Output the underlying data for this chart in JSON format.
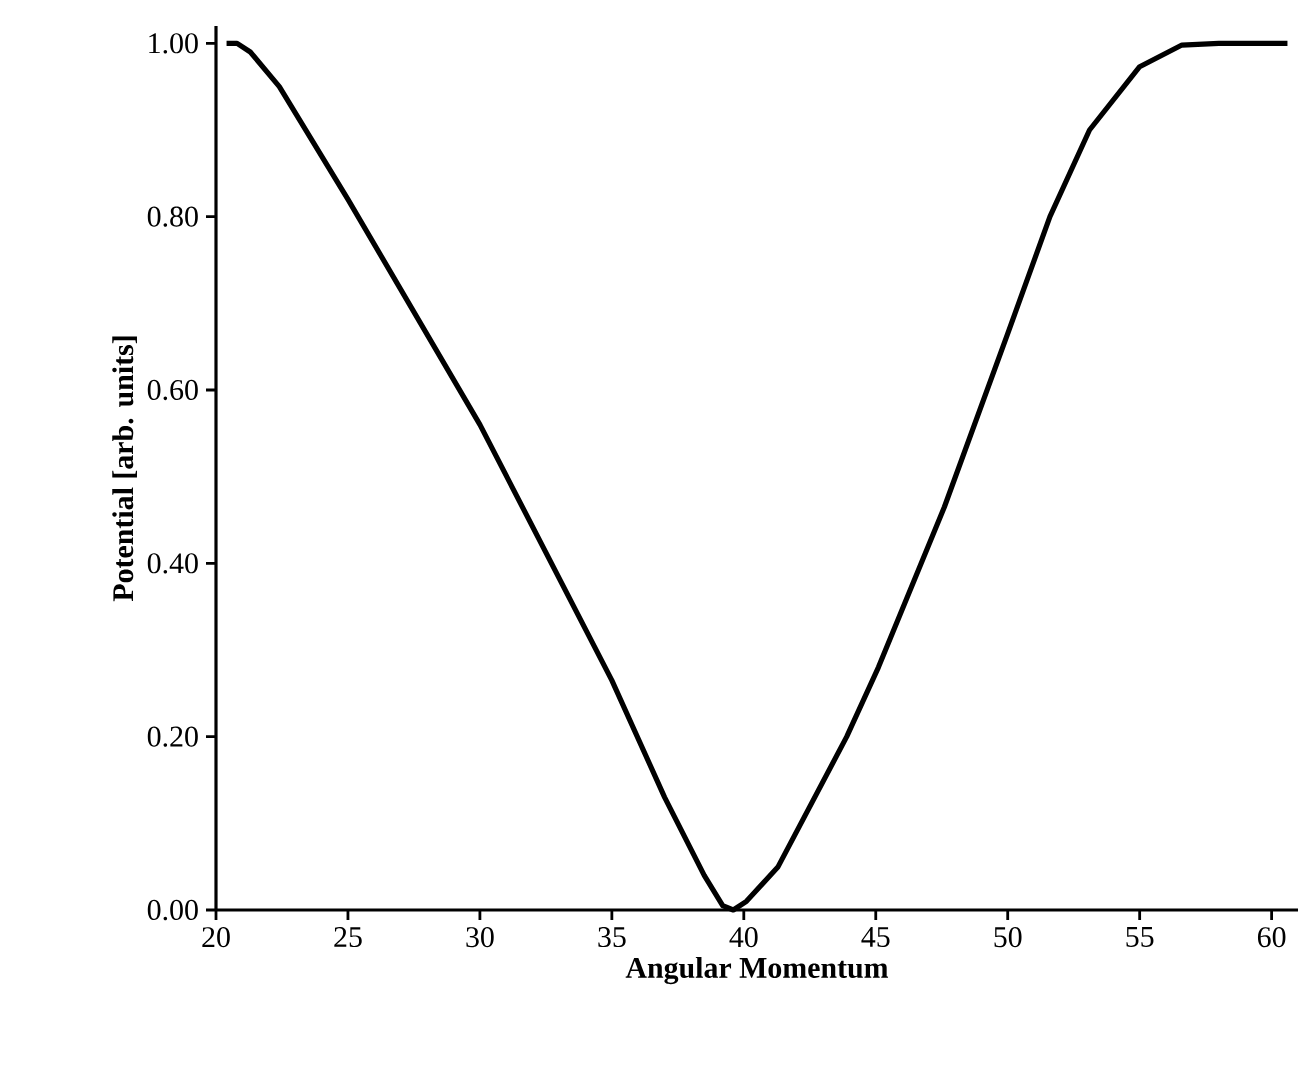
{
  "chart_data": {
    "type": "line",
    "xlabel": "Angular Momentum",
    "ylabel": "Potential [arb. units]",
    "xlim": [
      20,
      61
    ],
    "ylim": [
      0,
      1.02
    ],
    "xticks": [
      20,
      25,
      30,
      35,
      40,
      45,
      50,
      55,
      60
    ],
    "yticks": [
      {
        "value": 0,
        "label": "0.00"
      },
      {
        "value": 0.2,
        "label": "0.20"
      },
      {
        "value": 0.4,
        "label": "0.40"
      },
      {
        "value": 0.6,
        "label": "0.60"
      },
      {
        "value": 0.8,
        "label": "0.80"
      },
      {
        "value": 1,
        "label": "1.00"
      }
    ],
    "series": [
      {
        "color": "#000000",
        "x": [
          20.4,
          20.8,
          21.3,
          22.4,
          25,
          30,
          35,
          37,
          38.5,
          39.2,
          39.6,
          40.1,
          41.3,
          43.9,
          45.1,
          47.6,
          50,
          51.6,
          53.1,
          55,
          56.6,
          58,
          60.6
        ],
        "values": [
          1,
          1,
          0.99,
          0.95,
          0.82,
          0.56,
          0.265,
          0.13,
          0.04,
          0.005,
          0,
          0.01,
          0.05,
          0.2,
          0.28,
          0.465,
          0.665,
          0.8,
          0.9,
          0.973,
          0.998,
          1,
          1
        ]
      }
    ]
  }
}
